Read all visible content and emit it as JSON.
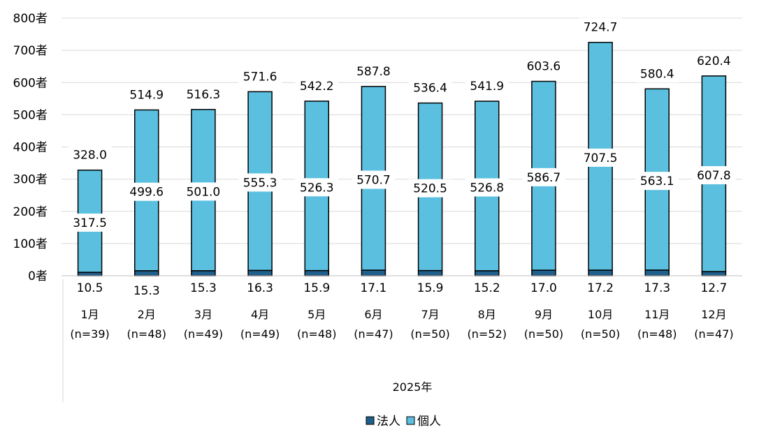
{
  "chart_data": {
    "type": "bar",
    "stacked": true,
    "group_label": "2025年",
    "categories": [
      "1月",
      "2月",
      "3月",
      "4月",
      "5月",
      "6月",
      "7月",
      "8月",
      "9月",
      "10月",
      "11月",
      "12月"
    ],
    "sample_sizes": [
      "(n=39)",
      "(n=48)",
      "(n=49)",
      "(n=49)",
      "(n=48)",
      "(n=47)",
      "(n=50)",
      "(n=52)",
      "(n=50)",
      "(n=50)",
      "(n=48)",
      "(n=47)"
    ],
    "series": [
      {
        "name": "法人",
        "color": "#1f5f8b",
        "values": [
          10.5,
          15.3,
          15.3,
          16.3,
          15.9,
          17.1,
          15.9,
          15.2,
          17.0,
          17.2,
          17.3,
          12.7
        ],
        "labels": [
          "10.5",
          "15.3",
          "15.3",
          "16.3",
          "15.9",
          "17.1",
          "15.9",
          "15.2",
          "17.0",
          "17.2",
          "17.3",
          "12.7"
        ]
      },
      {
        "name": "個人",
        "color": "#5bc0e0",
        "values": [
          317.5,
          499.6,
          501.0,
          555.3,
          526.3,
          570.7,
          520.5,
          526.8,
          586.7,
          707.5,
          563.1,
          607.8
        ],
        "labels": [
          "317.5",
          "499.6",
          "501.0",
          "555.3",
          "526.3",
          "570.7",
          "520.5",
          "526.8",
          "586.7",
          "707.5",
          "563.1",
          "607.8"
        ]
      }
    ],
    "totals": [
      328.0,
      514.9,
      516.3,
      571.6,
      542.2,
      587.8,
      536.4,
      541.9,
      603.6,
      724.7,
      580.4,
      620.4
    ],
    "total_labels": [
      "328.0",
      "514.9",
      "516.3",
      "571.6",
      "542.2",
      "587.8",
      "536.4",
      "541.9",
      "603.6",
      "724.7",
      "580.4",
      "620.4"
    ],
    "ylim": [
      0,
      800
    ],
    "yticks": [
      "0者",
      "100者",
      "200者",
      "300者",
      "400者",
      "500者",
      "600者",
      "700者",
      "800者"
    ],
    "grid": true,
    "legend": "bottom"
  }
}
